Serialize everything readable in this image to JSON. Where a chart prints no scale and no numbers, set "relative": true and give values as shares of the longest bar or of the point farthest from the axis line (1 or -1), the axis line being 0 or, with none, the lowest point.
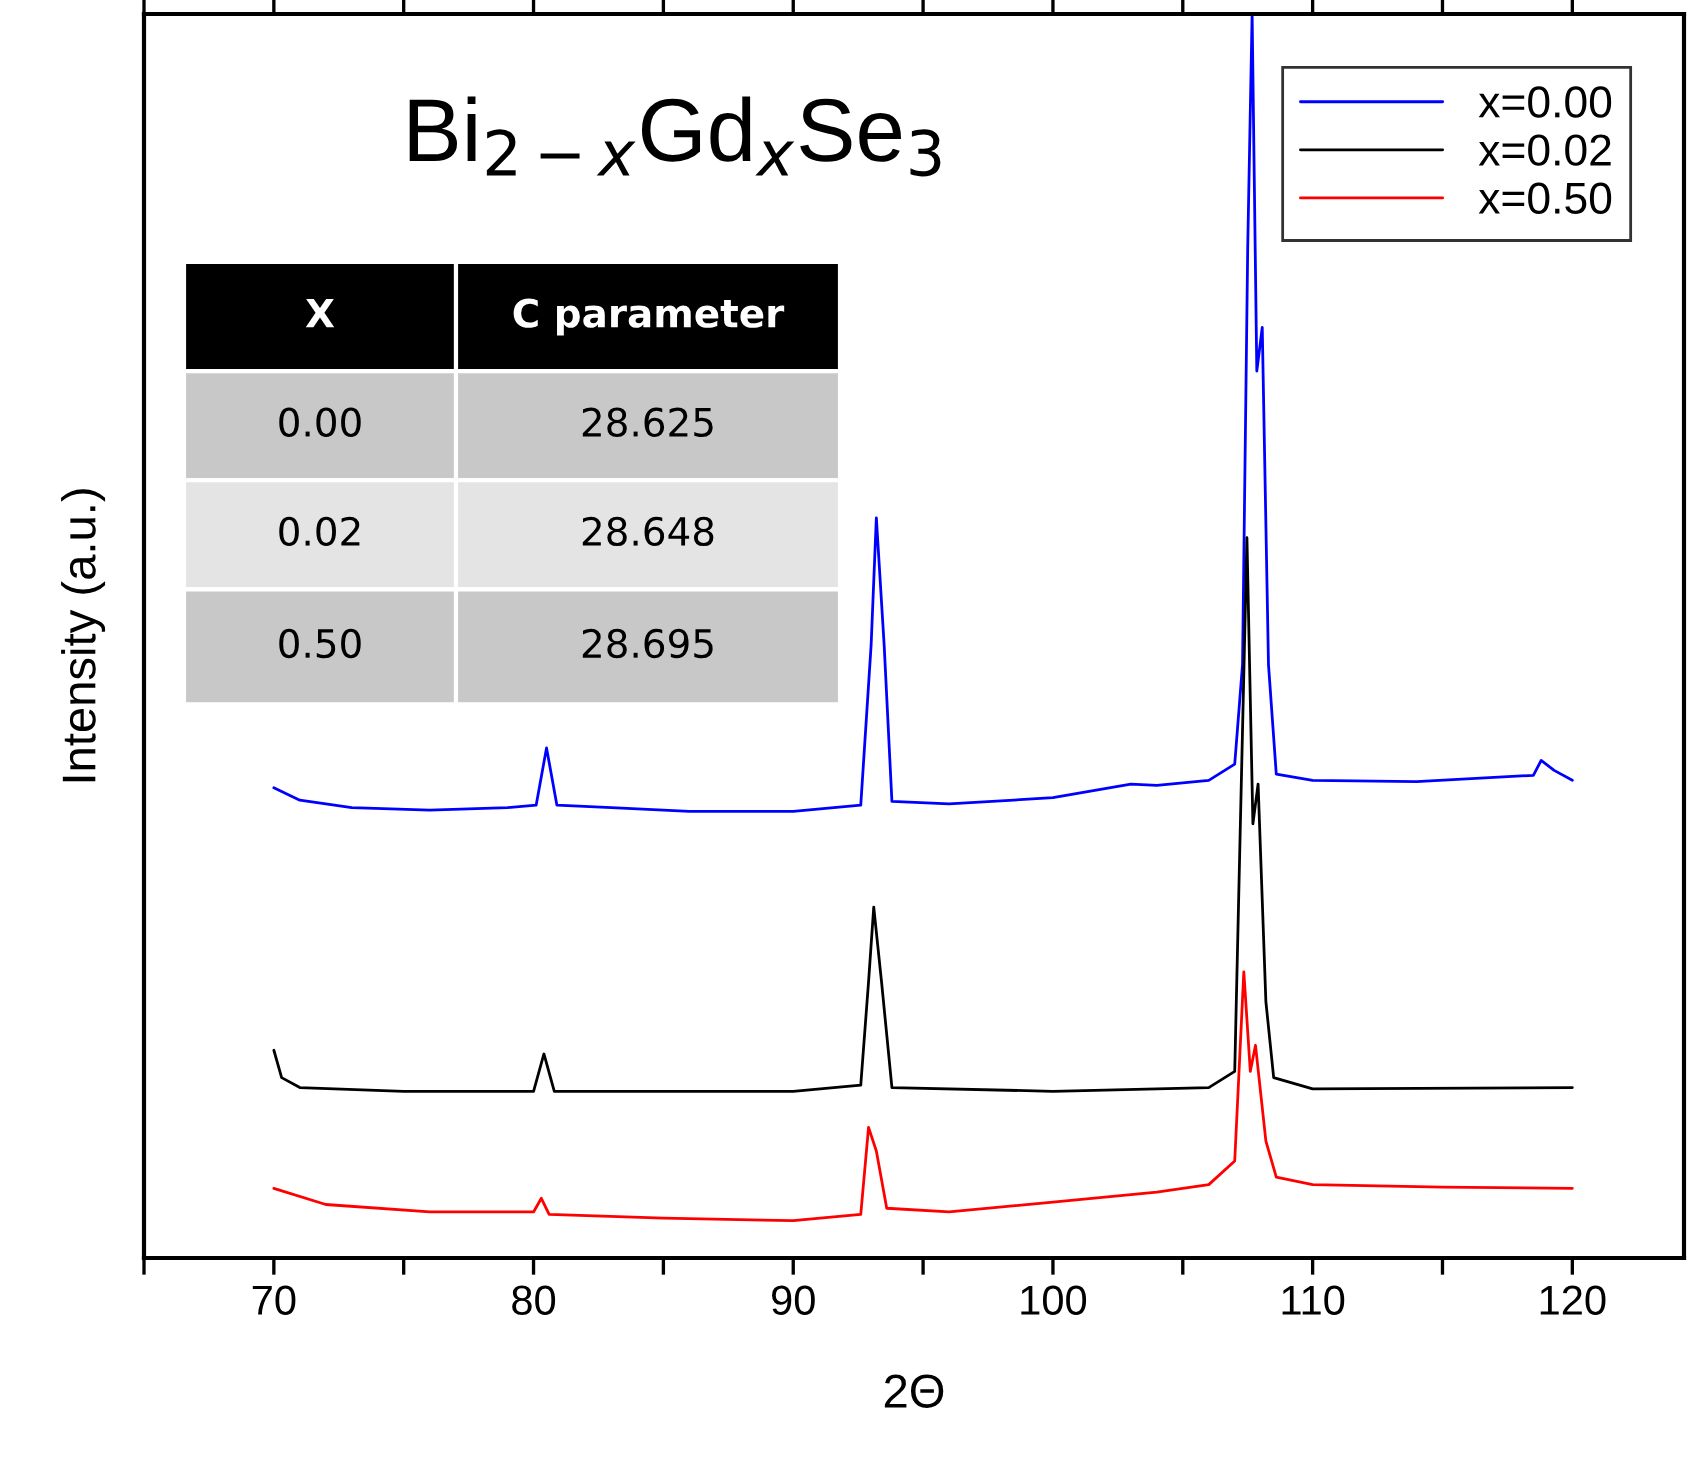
{
  "chart_data": {
    "type": "line",
    "title": "Bi$_{2−x}$Gd$_{x}$Se$_{3}$",
    "xlabel": "2Θ",
    "ylabel": "Intensity (a.u.)",
    "relative": true,
    "grid": false,
    "legend": "top right",
    "xlim": [
      65,
      124.3
    ],
    "xticks": [
      {
        "value": 65,
        "label": null
      },
      70,
      {
        "value": 75,
        "label": null
      },
      80,
      {
        "value": 85,
        "label": null
      },
      90,
      {
        "value": 95,
        "label": null
      },
      100,
      {
        "value": 105,
        "label": null
      },
      110,
      {
        "value": 115,
        "label": null
      },
      120
    ],
    "annotations": [
      "X",
      "C parameter",
      "0.00",
      "28.625",
      "0.02",
      "28.648",
      "0.50",
      "28.695"
    ],
    "series": [
      {
        "name": "x=0.00",
        "color": "#0000ff",
        "x": [
          70,
          71,
          73,
          76,
          79,
          80.1,
          80.5,
          80.9,
          83,
          86,
          90,
          92.6,
          93.0,
          93.2,
          93.5,
          93.8,
          96,
          100,
          103,
          104,
          106,
          107,
          107.3,
          107.5,
          107.67,
          107.85,
          108.06,
          108.3,
          108.6,
          110,
          114,
          118.5,
          118.8,
          119.3,
          120
        ],
        "values": [
          0.378,
          0.368,
          0.362,
          0.36,
          0.362,
          0.364,
          0.41,
          0.364,
          0.362,
          0.359,
          0.359,
          0.364,
          0.493,
          0.595,
          0.493,
          0.367,
          0.365,
          0.37,
          0.381,
          0.38,
          0.384,
          0.397,
          0.477,
          0.812,
          1.0,
          0.713,
          0.748,
          0.477,
          0.389,
          0.384,
          0.383,
          0.388,
          0.4,
          0.392,
          0.384
        ]
      },
      {
        "name": "x=0.02",
        "color": "#000000",
        "x": [
          70,
          70.3,
          71,
          75,
          80.0,
          80.4,
          80.8,
          90,
          92.6,
          92.9,
          93.1,
          93.4,
          93.8,
          100,
          106,
          107.0,
          107.2,
          107.47,
          107.7,
          107.9,
          108.2,
          108.5,
          110,
          120
        ],
        "values": [
          0.167,
          0.145,
          0.137,
          0.134,
          0.134,
          0.164,
          0.134,
          0.134,
          0.139,
          0.222,
          0.282,
          0.222,
          0.137,
          0.134,
          0.137,
          0.15,
          0.333,
          0.579,
          0.349,
          0.381,
          0.206,
          0.145,
          0.136,
          0.137
        ]
      },
      {
        "name": "x=0.50",
        "color": "#ff0000",
        "x": [
          70,
          72,
          76,
          80.0,
          80.3,
          80.6,
          85,
          90,
          92.6,
          92.9,
          93.2,
          93.6,
          96,
          100,
          104,
          106,
          107.0,
          107.35,
          107.6,
          107.8,
          108.2,
          108.6,
          110,
          115,
          120
        ],
        "values": [
          0.056,
          0.043,
          0.037,
          0.037,
          0.048,
          0.035,
          0.032,
          0.03,
          0.035,
          0.105,
          0.086,
          0.04,
          0.037,
          0.045,
          0.053,
          0.059,
          0.078,
          0.23,
          0.15,
          0.171,
          0.094,
          0.065,
          0.059,
          0.057,
          0.056
        ]
      }
    ]
  }
}
